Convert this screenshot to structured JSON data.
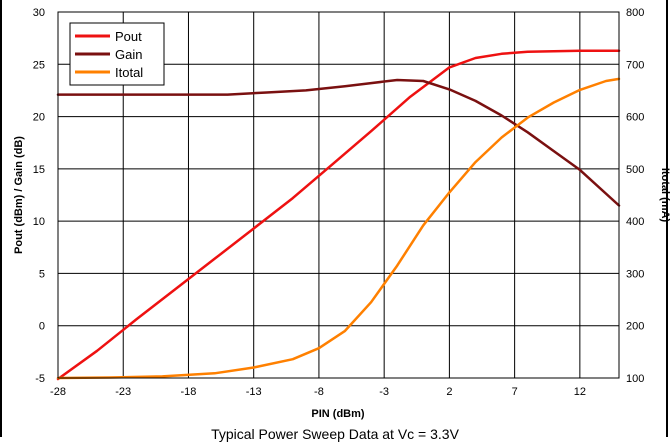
{
  "chart_data": {
    "type": "line",
    "caption": "Typical Power Sweep Data at Vc = 3.3V",
    "xlabel": "PIN (dBm)",
    "ylabel": "Pout (dBm) / Gain (dB)",
    "y2label": "Itotal (mA)",
    "xlim": [
      -28,
      15
    ],
    "ylim": [
      -5,
      30
    ],
    "y2lim": [
      100,
      800
    ],
    "xticks": [
      -28,
      -23,
      -18,
      -13,
      -8,
      -3,
      2,
      7,
      12
    ],
    "yticks": [
      -5,
      0,
      5,
      10,
      15,
      20,
      25,
      30
    ],
    "y2ticks": [
      100,
      200,
      300,
      400,
      500,
      600,
      700,
      800
    ],
    "grid": true,
    "legend": "top-left",
    "series": [
      {
        "name": "Pout",
        "axis": "left",
        "color": "#ee1111",
        "x": [
          -28,
          -25,
          -22,
          -19,
          -16,
          -13,
          -10,
          -7,
          -4,
          -1,
          2,
          4,
          6,
          8,
          10,
          12,
          15
        ],
        "y": [
          -5.1,
          -2.4,
          0.6,
          3.5,
          6.4,
          9.3,
          12.2,
          15.4,
          18.6,
          21.9,
          24.7,
          25.6,
          26.0,
          26.2,
          26.25,
          26.3,
          26.3
        ]
      },
      {
        "name": "Gain",
        "axis": "left",
        "color": "#7a1010",
        "x": [
          -28,
          -25,
          -20,
          -15,
          -12,
          -9,
          -6,
          -4,
          -2,
          0,
          2,
          4,
          6,
          8,
          10,
          12,
          15
        ],
        "y": [
          22.1,
          22.1,
          22.1,
          22.1,
          22.3,
          22.5,
          22.9,
          23.2,
          23.5,
          23.4,
          22.6,
          21.5,
          20.1,
          18.5,
          16.7,
          14.9,
          11.5
        ]
      },
      {
        "name": "Itotal",
        "axis": "right",
        "color": "#ff8000",
        "x": [
          -28,
          -24,
          -20,
          -16,
          -13,
          -10,
          -8,
          -6,
          -4,
          -2,
          0,
          2,
          4,
          6,
          8,
          10,
          12,
          14,
          15
        ],
        "y": [
          100,
          101,
          103,
          109,
          120,
          136,
          157,
          190,
          245,
          315,
          392,
          455,
          513,
          560,
          598,
          627,
          651,
          668,
          672
        ]
      }
    ]
  }
}
